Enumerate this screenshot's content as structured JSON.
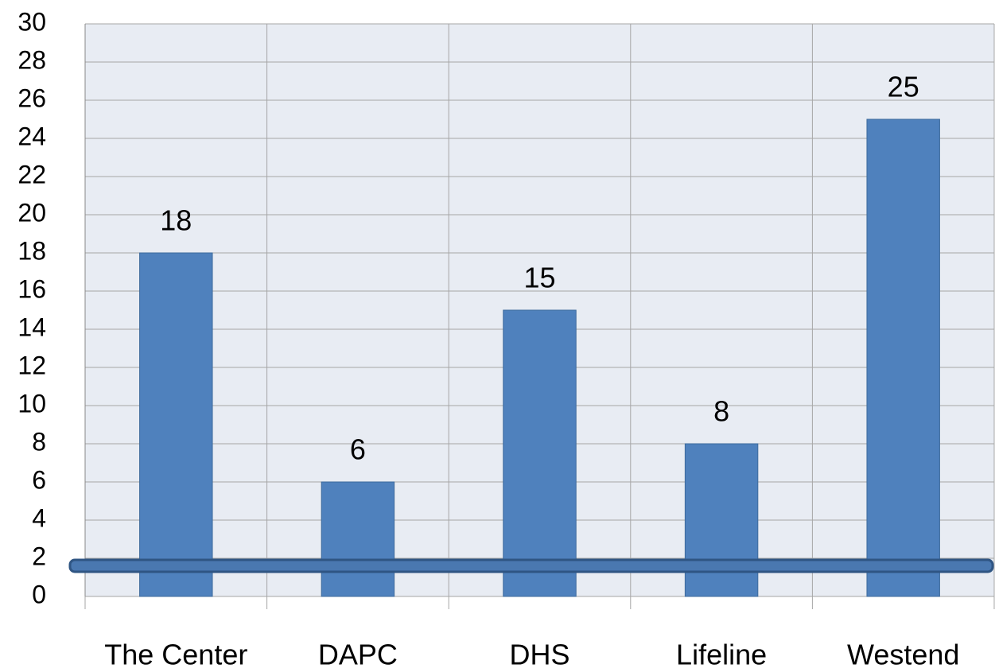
{
  "chart_data": {
    "type": "bar",
    "categories": [
      "The Center",
      "DAPC",
      "DHS",
      "Lifeline",
      "Westend"
    ],
    "values": [
      18,
      6,
      15,
      8,
      25
    ],
    "color": "#4f81bd",
    "ylim": [
      0,
      30
    ],
    "yticks": [
      0,
      2,
      4,
      6,
      8,
      10,
      12,
      14,
      16,
      18,
      20,
      22,
      24,
      26,
      28,
      30
    ],
    "grid": true
  }
}
